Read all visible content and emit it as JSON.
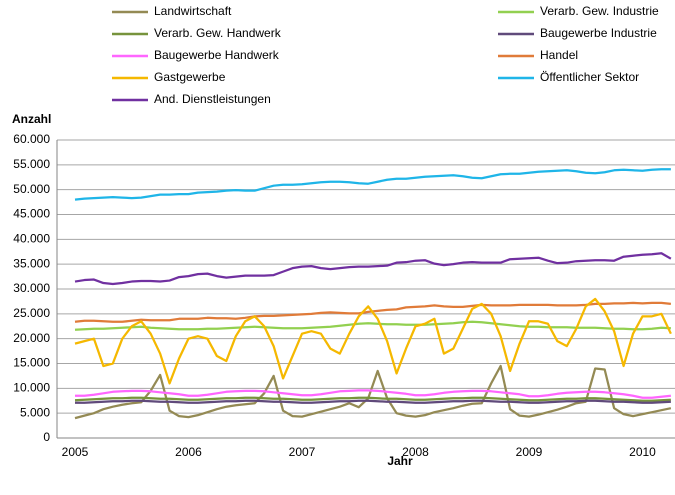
{
  "chart_data": {
    "type": "line",
    "y_label": "Anzahl",
    "x_label": "Jahr",
    "categories": [
      "2005",
      null,
      null,
      null,
      null,
      null,
      null,
      null,
      null,
      null,
      null,
      null,
      "2006",
      null,
      null,
      null,
      null,
      null,
      null,
      null,
      null,
      null,
      null,
      null,
      "2007",
      null,
      null,
      null,
      null,
      null,
      null,
      null,
      null,
      null,
      null,
      null,
      "2008",
      null,
      null,
      null,
      null,
      null,
      null,
      null,
      null,
      null,
      null,
      null,
      "2009",
      null,
      null,
      null,
      null,
      null,
      null,
      null,
      null,
      null,
      null,
      null,
      "2010",
      null,
      null,
      null
    ],
    "ylim": [
      0,
      60000
    ],
    "yticks": [
      0,
      {
        "value": 5000,
        "label": "5.000"
      },
      {
        "value": 10000,
        "label": "10.000"
      },
      {
        "value": 15000,
        "label": "15.000"
      },
      {
        "value": 20000,
        "label": "20.000"
      },
      {
        "value": 25000,
        "label": "25.000"
      },
      {
        "value": 30000,
        "label": "30.000"
      },
      {
        "value": 35000,
        "label": "35.000"
      },
      {
        "value": 40000,
        "label": "40.000"
      },
      {
        "value": 45000,
        "label": "45.000"
      },
      {
        "value": 50000,
        "label": "50.000"
      },
      {
        "value": 55000,
        "label": "55.000"
      },
      {
        "value": 60000,
        "label": "60.000"
      }
    ],
    "grid": true,
    "series": [
      {
        "name": "Landwirtschaft",
        "color": "#948a54",
        "values": [
          4000,
          4500,
          5000,
          5800,
          6300,
          6700,
          7000,
          7200,
          9500,
          12700,
          5500,
          4400,
          4200,
          4600,
          5200,
          5800,
          6300,
          6600,
          6800,
          7000,
          9000,
          12500,
          5500,
          4400,
          4300,
          4800,
          5300,
          5800,
          6300,
          7000,
          6200,
          8000,
          13500,
          8000,
          5000,
          4500,
          4300,
          4600,
          5200,
          5600,
          6000,
          6500,
          6900,
          7000,
          11000,
          14500,
          5800,
          4500,
          4300,
          4700,
          5200,
          5700,
          6300,
          7000,
          7300,
          14000,
          13800,
          6000,
          4800,
          4400,
          4800,
          5200,
          5600,
          6000
        ]
      },
      {
        "name": "Verarb. Gew. Industrie",
        "color": "#92d050",
        "values": [
          21800,
          21900,
          22000,
          22000,
          22100,
          22200,
          22300,
          22400,
          22200,
          22100,
          22000,
          21900,
          21900,
          21900,
          22000,
          22000,
          22100,
          22200,
          22300,
          22400,
          22300,
          22200,
          22100,
          22100,
          22100,
          22200,
          22300,
          22400,
          22600,
          22800,
          23000,
          23100,
          23000,
          22900,
          22900,
          22800,
          22800,
          22800,
          22900,
          23000,
          23100,
          23300,
          23400,
          23300,
          23100,
          22900,
          22700,
          22500,
          22400,
          22400,
          22300,
          22300,
          22300,
          22200,
          22200,
          22200,
          22100,
          22000,
          22000,
          21900,
          21900,
          22000,
          22200,
          22100
        ]
      },
      {
        "name": "Verarb. Gew. Handwerk",
        "color": "#77933c",
        "values": [
          7600,
          7700,
          7800,
          7900,
          8000,
          8000,
          8100,
          8100,
          8000,
          7900,
          7900,
          7800,
          7700,
          7700,
          7800,
          7900,
          8000,
          8000,
          8100,
          8100,
          8000,
          7900,
          7900,
          7800,
          7700,
          7700,
          7800,
          7900,
          8000,
          8000,
          8100,
          8100,
          8000,
          7900,
          7900,
          7800,
          7700,
          7700,
          7800,
          7900,
          8000,
          8000,
          8100,
          8100,
          8000,
          7900,
          7800,
          7700,
          7600,
          7600,
          7700,
          7800,
          7900,
          7900,
          8000,
          8000,
          7900,
          7800,
          7700,
          7600,
          7500,
          7500,
          7600,
          7700
        ]
      },
      {
        "name": "Baugewerbe Industrie",
        "color": "#604a7b",
        "values": [
          7100,
          7100,
          7200,
          7300,
          7400,
          7400,
          7500,
          7500,
          7400,
          7300,
          7300,
          7200,
          7100,
          7100,
          7200,
          7300,
          7400,
          7400,
          7500,
          7500,
          7400,
          7300,
          7300,
          7200,
          7100,
          7100,
          7200,
          7300,
          7400,
          7400,
          7500,
          7500,
          7400,
          7300,
          7300,
          7200,
          7100,
          7100,
          7200,
          7300,
          7400,
          7400,
          7500,
          7500,
          7400,
          7300,
          7300,
          7200,
          7100,
          7100,
          7200,
          7300,
          7400,
          7400,
          7500,
          7500,
          7400,
          7300,
          7300,
          7200,
          7100,
          7100,
          7200,
          7300
        ]
      },
      {
        "name": "Baugewerbe Handwerk",
        "color": "#ff66ff",
        "values": [
          8500,
          8500,
          8700,
          9000,
          9300,
          9400,
          9500,
          9500,
          9400,
          9200,
          9000,
          8800,
          8500,
          8500,
          8700,
          9000,
          9300,
          9400,
          9500,
          9500,
          9400,
          9200,
          9000,
          8800,
          8600,
          8600,
          8800,
          9100,
          9400,
          9500,
          9600,
          9600,
          9500,
          9300,
          9100,
          8900,
          8600,
          8600,
          8800,
          9100,
          9300,
          9400,
          9500,
          9500,
          9400,
          9200,
          9000,
          8800,
          8400,
          8400,
          8600,
          8900,
          9100,
          9200,
          9300,
          9300,
          9200,
          9000,
          8800,
          8500,
          8100,
          8100,
          8300,
          8500
        ]
      },
      {
        "name": "Handel",
        "color": "#e07b39",
        "values": [
          23400,
          23600,
          23600,
          23500,
          23400,
          23400,
          23600,
          23800,
          23700,
          23700,
          23700,
          24000,
          24000,
          24000,
          24200,
          24100,
          24100,
          24000,
          24200,
          24500,
          24600,
          24600,
          24700,
          24800,
          24900,
          25000,
          25200,
          25300,
          25200,
          25100,
          25100,
          25400,
          25600,
          25800,
          25900,
          26300,
          26400,
          26500,
          26700,
          26500,
          26400,
          26400,
          26600,
          26800,
          26700,
          26700,
          26700,
          26800,
          26800,
          26800,
          26800,
          26700,
          26700,
          26700,
          26800,
          27000,
          27000,
          27100,
          27100,
          27200,
          27100,
          27200,
          27200,
          27000
        ]
      },
      {
        "name": "Gastgewerbe",
        "color": "#f5b800",
        "values": [
          19000,
          19500,
          20000,
          14500,
          15000,
          20000,
          22500,
          23500,
          21000,
          17000,
          11000,
          16000,
          20000,
          20500,
          20000,
          16500,
          15500,
          20500,
          23500,
          24500,
          22500,
          18500,
          12000,
          16500,
          21000,
          21500,
          21000,
          18000,
          17000,
          21000,
          24500,
          26500,
          24000,
          19500,
          13000,
          18000,
          22500,
          23000,
          24000,
          17000,
          18000,
          22000,
          26000,
          27000,
          25000,
          20500,
          13500,
          19000,
          23500,
          23500,
          23000,
          19500,
          18500,
          22000,
          26500,
          28000,
          25500,
          21500,
          14500,
          21000,
          24500,
          24500,
          25000,
          21000
        ]
      },
      {
        "name": "Öffentlicher Sektor",
        "color": "#1fb5e8",
        "values": [
          48000,
          48200,
          48300,
          48400,
          48500,
          48400,
          48300,
          48400,
          48700,
          49000,
          49000,
          49100,
          49100,
          49400,
          49500,
          49600,
          49800,
          49900,
          49800,
          49800,
          50300,
          50800,
          51000,
          51000,
          51100,
          51300,
          51500,
          51600,
          51600,
          51500,
          51300,
          51200,
          51600,
          52000,
          52200,
          52200,
          52400,
          52600,
          52700,
          52800,
          52900,
          52700,
          52400,
          52300,
          52700,
          53100,
          53200,
          53200,
          53400,
          53600,
          53700,
          53800,
          53900,
          53700,
          53400,
          53300,
          53500,
          53900,
          54000,
          53900,
          53800,
          54000,
          54100,
          54100
        ]
      },
      {
        "name": "And. Dienstleistungen",
        "color": "#7030a0",
        "values": [
          31500,
          31800,
          31900,
          31200,
          31000,
          31200,
          31500,
          31600,
          31600,
          31500,
          31700,
          32400,
          32600,
          33000,
          33100,
          32600,
          32300,
          32500,
          32700,
          32700,
          32700,
          32800,
          33500,
          34200,
          34500,
          34600,
          34200,
          34000,
          34200,
          34400,
          34500,
          34500,
          34600,
          34700,
          35300,
          35400,
          35700,
          35800,
          35100,
          34800,
          35000,
          35300,
          35400,
          35300,
          35300,
          35300,
          36000,
          36100,
          36200,
          36300,
          35700,
          35200,
          35300,
          35600,
          35700,
          35800,
          35800,
          35700,
          36500,
          36700,
          36900,
          37000,
          37200,
          36100
        ]
      }
    ]
  }
}
